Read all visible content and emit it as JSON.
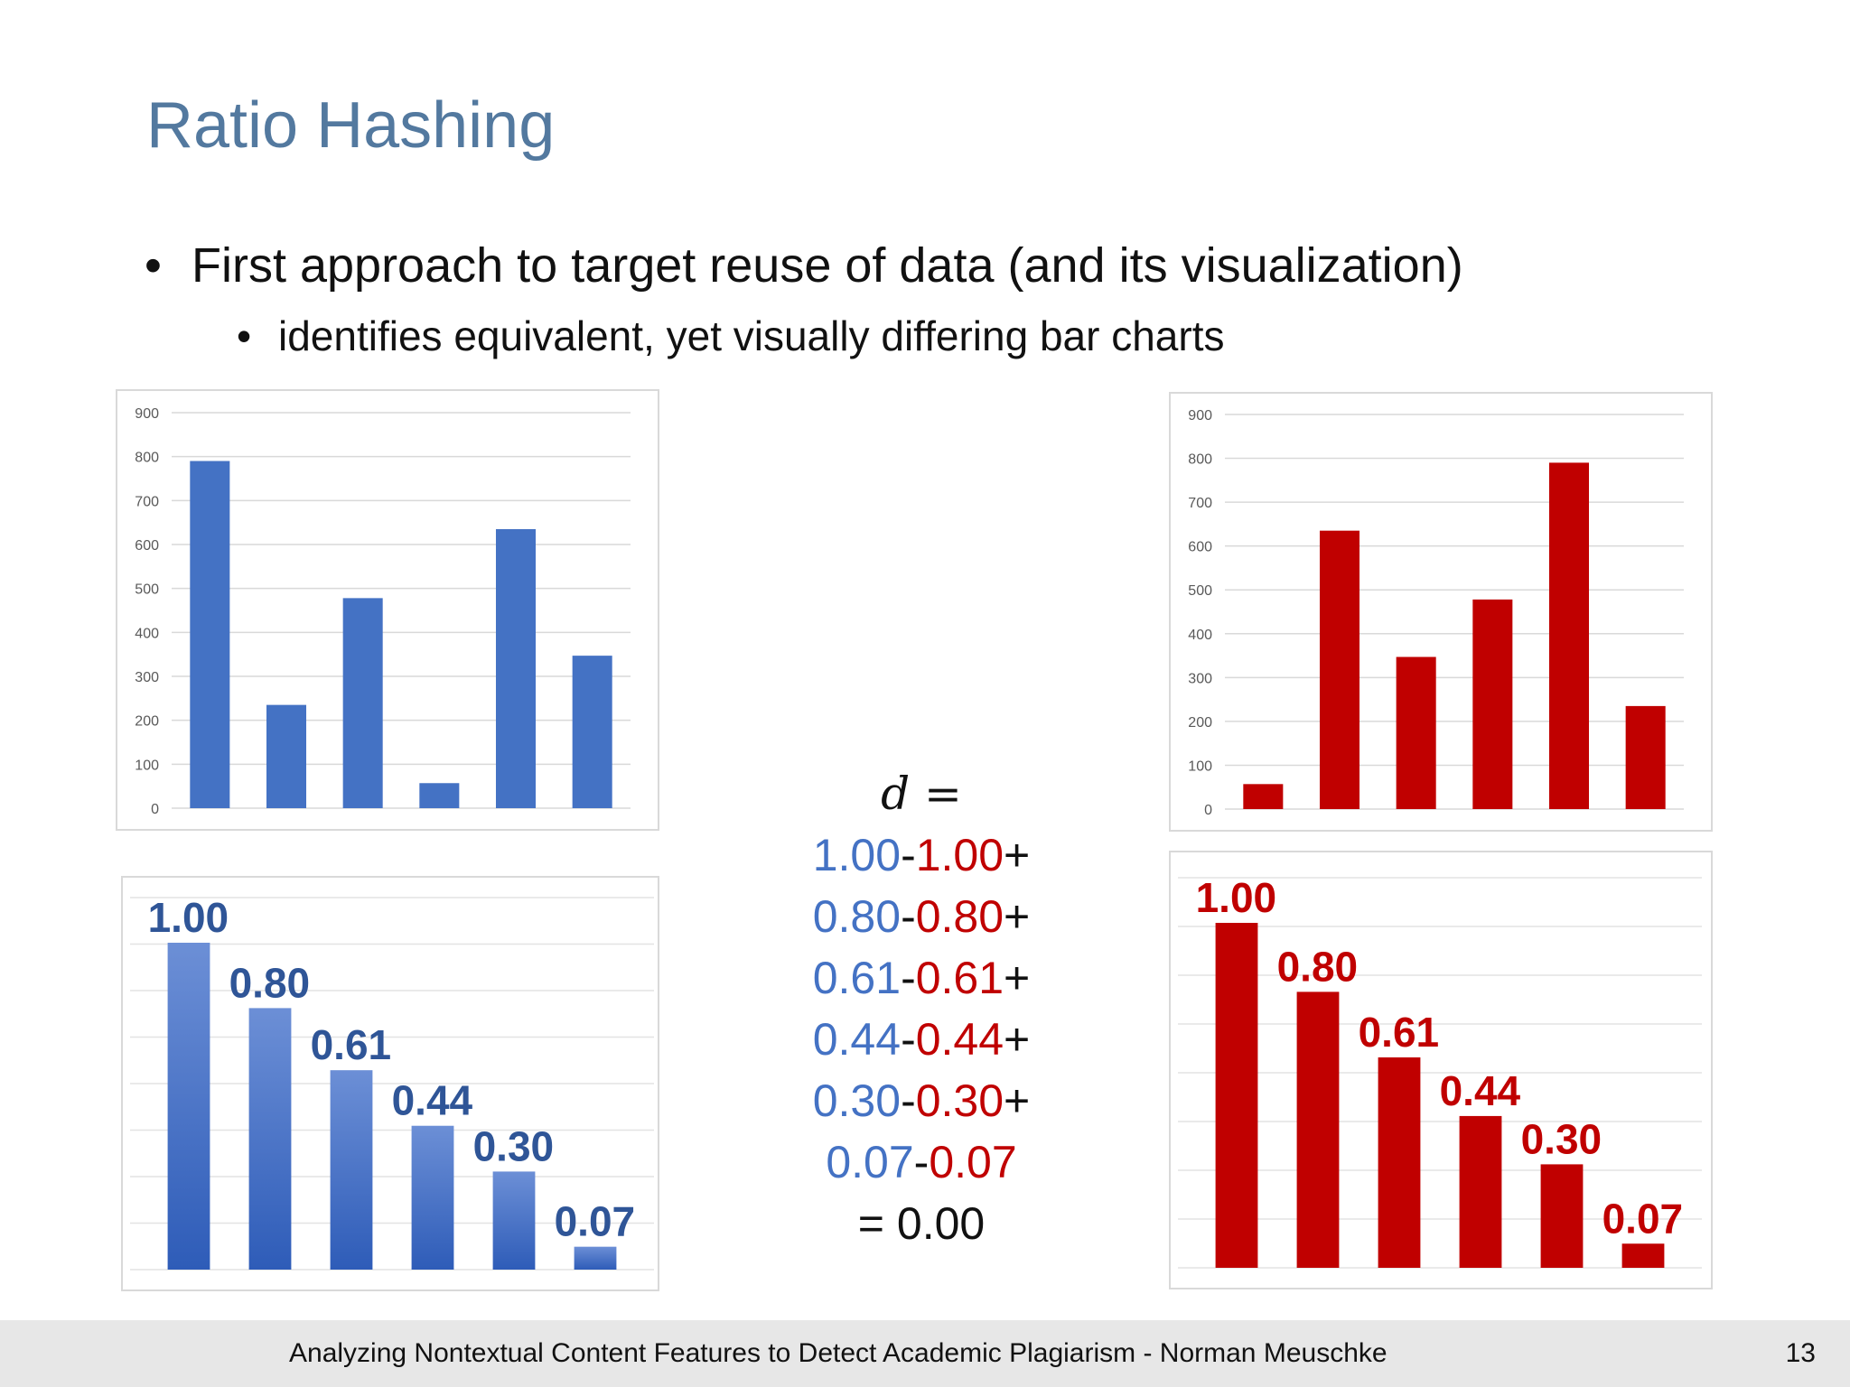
{
  "slide": {
    "title": "Ratio Hashing",
    "bullet_1": "First approach to target reuse of data (and its visualization)",
    "bullet_2": "identifies equivalent, yet visually differing bar charts",
    "bullet_glyph": "•"
  },
  "formula": {
    "d_symbol": "d",
    "equals": "=",
    "rows": [
      {
        "a": "1.00",
        "sep": "-",
        "b": "1.00",
        "op": "+"
      },
      {
        "a": "0.80",
        "sep": "-",
        "b": "0.80",
        "op": "+"
      },
      {
        "a": "0.61",
        "sep": "-",
        "b": "0.61",
        "op": "+"
      },
      {
        "a": "0.44",
        "sep": "-",
        "b": "0.44",
        "op": "+"
      },
      {
        "a": "0.30",
        "sep": "-",
        "b": "0.30",
        "op": "+"
      },
      {
        "a": "0.07",
        "sep": "-",
        "b": "0.07",
        "op": ""
      }
    ],
    "result": "= 0.00"
  },
  "footer": {
    "text": "Analyzing Nontextual Content Features to Detect Academic Plagiarism - Norman Meuschke",
    "page_number": "13"
  },
  "colors": {
    "blue": "#4472c4",
    "dark_blue": "#2f5597",
    "red": "#c00000",
    "title": "#53799f"
  },
  "chart_data": [
    {
      "type": "bar",
      "id": "original-blue",
      "color": "#4472c4",
      "values": [
        790,
        235,
        478,
        57,
        635,
        347
      ],
      "ylim": [
        0,
        900
      ],
      "yticks": [
        0,
        100,
        200,
        300,
        400,
        500,
        600,
        700,
        800,
        900
      ],
      "grid": true
    },
    {
      "type": "bar",
      "id": "reordered-red",
      "color": "#c00000",
      "values": [
        57,
        635,
        347,
        478,
        790,
        235
      ],
      "ylim": [
        0,
        900
      ],
      "yticks": [
        0,
        100,
        200,
        300,
        400,
        500,
        600,
        700,
        800,
        900
      ],
      "grid": true
    },
    {
      "type": "bar",
      "id": "ratios-blue",
      "color": "#4472c4",
      "label_color": "#2f5597",
      "values": [
        1.0,
        0.8,
        0.61,
        0.44,
        0.3,
        0.07
      ],
      "labels": [
        "1.00",
        "0.80",
        "0.61",
        "0.44",
        "0.30",
        "0.07"
      ],
      "ylim": [
        0,
        1
      ],
      "grid": true
    },
    {
      "type": "bar",
      "id": "ratios-red",
      "color": "#c00000",
      "label_color": "#c00000",
      "values": [
        1.0,
        0.8,
        0.61,
        0.44,
        0.3,
        0.07
      ],
      "labels": [
        "1.00",
        "0.80",
        "0.61",
        "0.44",
        "0.30",
        "0.07"
      ],
      "ylim": [
        0,
        1
      ],
      "grid": true
    }
  ]
}
